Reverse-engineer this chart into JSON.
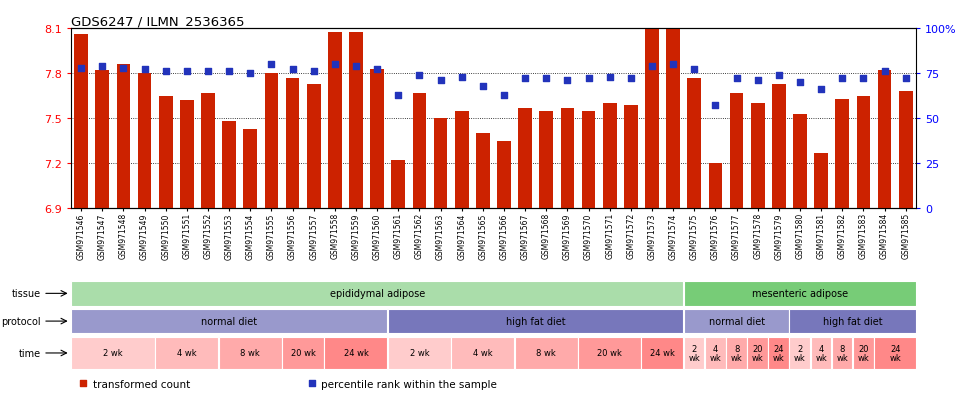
{
  "title": "GDS6247 / ILMN_2536365",
  "samples": [
    "GSM971546",
    "GSM971547",
    "GSM971548",
    "GSM971549",
    "GSM971550",
    "GSM971551",
    "GSM971552",
    "GSM971553",
    "GSM971554",
    "GSM971555",
    "GSM971556",
    "GSM971557",
    "GSM971558",
    "GSM971559",
    "GSM971560",
    "GSM971561",
    "GSM971562",
    "GSM971563",
    "GSM971564",
    "GSM971565",
    "GSM971566",
    "GSM971567",
    "GSM971568",
    "GSM971569",
    "GSM971570",
    "GSM971571",
    "GSM971572",
    "GSM971573",
    "GSM971574",
    "GSM971575",
    "GSM971576",
    "GSM971577",
    "GSM971578",
    "GSM971579",
    "GSM971580",
    "GSM971581",
    "GSM971582",
    "GSM971583",
    "GSM971584",
    "GSM971585"
  ],
  "bar_values": [
    8.06,
    7.82,
    7.86,
    7.8,
    7.65,
    7.62,
    7.67,
    7.48,
    7.43,
    7.8,
    7.77,
    7.73,
    8.07,
    8.07,
    7.83,
    7.22,
    7.67,
    7.5,
    7.55,
    7.4,
    7.35,
    7.57,
    7.55,
    7.57,
    7.55,
    7.6,
    7.59,
    8.1,
    8.1,
    7.77,
    7.2,
    7.67,
    7.6,
    7.73,
    7.53,
    7.27,
    7.63,
    7.65,
    7.82,
    7.68
  ],
  "percentile_values": [
    78,
    79,
    78,
    77,
    76,
    76,
    76,
    76,
    75,
    80,
    77,
    76,
    80,
    79,
    77,
    63,
    74,
    71,
    73,
    68,
    63,
    72,
    72,
    71,
    72,
    73,
    72,
    79,
    80,
    77,
    57,
    72,
    71,
    74,
    70,
    66,
    72,
    72,
    76,
    72
  ],
  "ylim_left": [
    6.9,
    8.1
  ],
  "ylim_right": [
    0,
    100
  ],
  "yticks_left": [
    6.9,
    7.2,
    7.5,
    7.8,
    8.1
  ],
  "yticks_right": [
    0,
    25,
    50,
    75,
    100
  ],
  "bar_color": "#CC2200",
  "dot_color": "#2233BB",
  "tissue_labels": [
    {
      "label": "epididymal adipose",
      "start": 0,
      "end": 29,
      "color": "#AADDAA"
    },
    {
      "label": "mesenteric adipose",
      "start": 29,
      "end": 40,
      "color": "#77CC77"
    }
  ],
  "protocol_labels": [
    {
      "label": "normal diet",
      "start": 0,
      "end": 15,
      "color": "#9999CC"
    },
    {
      "label": "high fat diet",
      "start": 15,
      "end": 29,
      "color": "#7777BB"
    },
    {
      "label": "normal diet",
      "start": 29,
      "end": 34,
      "color": "#9999CC"
    },
    {
      "label": "high fat diet",
      "start": 34,
      "end": 40,
      "color": "#7777BB"
    }
  ],
  "time_labels": [
    {
      "label": "2 wk",
      "start": 0,
      "end": 4,
      "color": "#FFCCCC"
    },
    {
      "label": "4 wk",
      "start": 4,
      "end": 7,
      "color": "#FFBBBB"
    },
    {
      "label": "8 wk",
      "start": 7,
      "end": 10,
      "color": "#FFAAAA"
    },
    {
      "label": "20 wk",
      "start": 10,
      "end": 12,
      "color": "#FF9999"
    },
    {
      "label": "24 wk",
      "start": 12,
      "end": 15,
      "color": "#FF8888"
    },
    {
      "label": "2 wk",
      "start": 15,
      "end": 18,
      "color": "#FFCCCC"
    },
    {
      "label": "4 wk",
      "start": 18,
      "end": 21,
      "color": "#FFBBBB"
    },
    {
      "label": "8 wk",
      "start": 21,
      "end": 24,
      "color": "#FFAAAA"
    },
    {
      "label": "20 wk",
      "start": 24,
      "end": 27,
      "color": "#FF9999"
    },
    {
      "label": "24 wk",
      "start": 27,
      "end": 29,
      "color": "#FF8888"
    },
    {
      "label": "2\nwk",
      "start": 29,
      "end": 30,
      "color": "#FFCCCC"
    },
    {
      "label": "4\nwk",
      "start": 30,
      "end": 31,
      "color": "#FFBBBB"
    },
    {
      "label": "8\nwk",
      "start": 31,
      "end": 32,
      "color": "#FFAAAA"
    },
    {
      "label": "20\nwk",
      "start": 32,
      "end": 33,
      "color": "#FF9999"
    },
    {
      "label": "24\nwk",
      "start": 33,
      "end": 34,
      "color": "#FF8888"
    },
    {
      "label": "2\nwk",
      "start": 34,
      "end": 35,
      "color": "#FFCCCC"
    },
    {
      "label": "4\nwk",
      "start": 35,
      "end": 36,
      "color": "#FFBBBB"
    },
    {
      "label": "8\nwk",
      "start": 36,
      "end": 37,
      "color": "#FFAAAA"
    },
    {
      "label": "20\nwk",
      "start": 37,
      "end": 38,
      "color": "#FF9999"
    },
    {
      "label": "24\nwk",
      "start": 38,
      "end": 40,
      "color": "#FF8888"
    }
  ],
  "legend_items": [
    {
      "label": "transformed count",
      "color": "#CC2200",
      "marker": "s"
    },
    {
      "label": "percentile rank within the sample",
      "color": "#2233BB",
      "marker": "s"
    }
  ]
}
